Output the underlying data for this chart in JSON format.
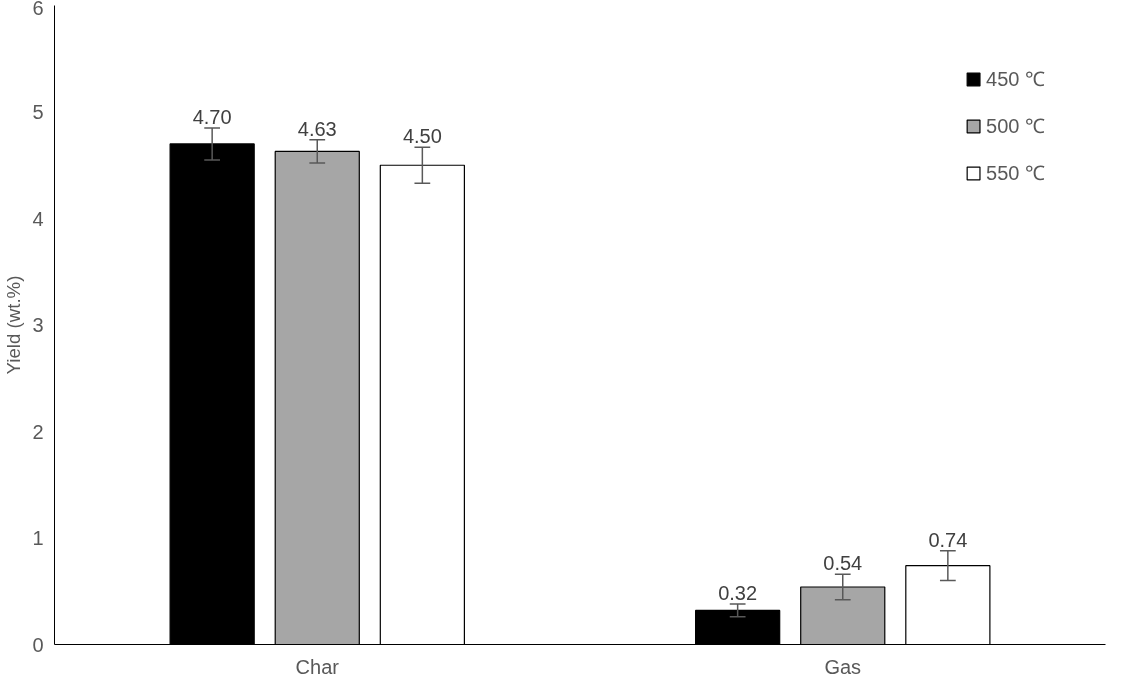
{
  "chart_data": {
    "type": "bar",
    "ylabel": "Yield (wt.%)",
    "categories": [
      "Char",
      "Gas"
    ],
    "series": [
      {
        "name": "450 ℃",
        "color": "#000000",
        "values": [
          4.7,
          0.32
        ],
        "errors": [
          0.15,
          0.06
        ],
        "value_labels": [
          "4.70",
          "0.32"
        ]
      },
      {
        "name": "500 ℃",
        "color": "#a6a6a6",
        "values": [
          4.63,
          0.54
        ],
        "errors": [
          0.11,
          0.12
        ],
        "value_labels": [
          "4.63",
          "0.54"
        ]
      },
      {
        "name": "550 ℃",
        "color": "#ffffff",
        "values": [
          4.5,
          0.74
        ],
        "errors": [
          0.17,
          0.14
        ],
        "value_labels": [
          "4.50",
          "0.74"
        ]
      }
    ],
    "ylim": [
      0,
      6
    ],
    "yticks": [
      0,
      1,
      2,
      3,
      4,
      5,
      6
    ],
    "grid": false,
    "legend": "top right"
  }
}
